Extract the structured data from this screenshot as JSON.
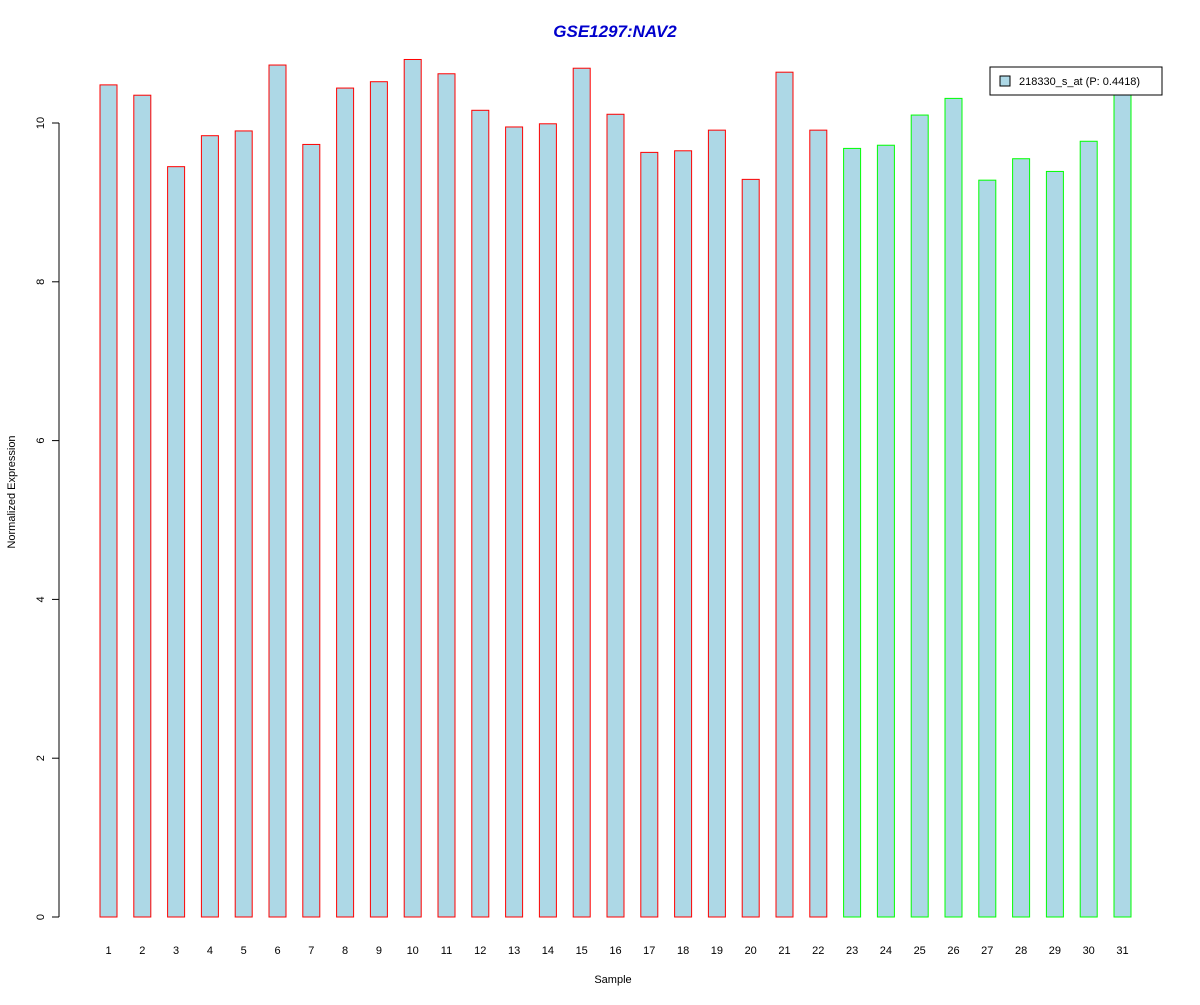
{
  "chart_data": {
    "type": "bar",
    "title": "GSE1297:NAV2",
    "xlabel": "Sample",
    "ylabel": "Normalized Expression",
    "categories": [
      "1",
      "2",
      "3",
      "4",
      "5",
      "6",
      "7",
      "8",
      "9",
      "10",
      "11",
      "12",
      "13",
      "14",
      "15",
      "16",
      "17",
      "18",
      "19",
      "20",
      "21",
      "22",
      "23",
      "24",
      "25",
      "26",
      "27",
      "28",
      "29",
      "30",
      "31"
    ],
    "series": [
      {
        "name": "218330_s_at (P: 0.4418)",
        "values": [
          10.48,
          10.35,
          9.45,
          9.84,
          9.9,
          10.73,
          9.73,
          10.44,
          10.52,
          10.8,
          10.62,
          10.16,
          9.95,
          9.99,
          10.69,
          10.11,
          9.63,
          9.65,
          9.91,
          9.29,
          10.64,
          9.91,
          9.68,
          9.72,
          10.1,
          10.31,
          9.28,
          9.55,
          9.39,
          9.77,
          10.4
        ]
      }
    ],
    "group_outline_colors": [
      "#ff0000",
      "#ff0000",
      "#ff0000",
      "#ff0000",
      "#ff0000",
      "#ff0000",
      "#ff0000",
      "#ff0000",
      "#ff0000",
      "#ff0000",
      "#ff0000",
      "#ff0000",
      "#ff0000",
      "#ff0000",
      "#ff0000",
      "#ff0000",
      "#ff0000",
      "#ff0000",
      "#ff0000",
      "#ff0000",
      "#ff0000",
      "#ff0000",
      "#00ff00",
      "#00ff00",
      "#00ff00",
      "#00ff00",
      "#00ff00",
      "#00ff00",
      "#00ff00",
      "#00ff00",
      "#00ff00"
    ],
    "bar_fill": "#add8e6",
    "title_color": "#0000cc",
    "yticks": [
      0,
      2,
      4,
      6,
      8,
      10
    ],
    "ylim": [
      0,
      10.8
    ],
    "legend_position": "top-right",
    "grid": false
  }
}
